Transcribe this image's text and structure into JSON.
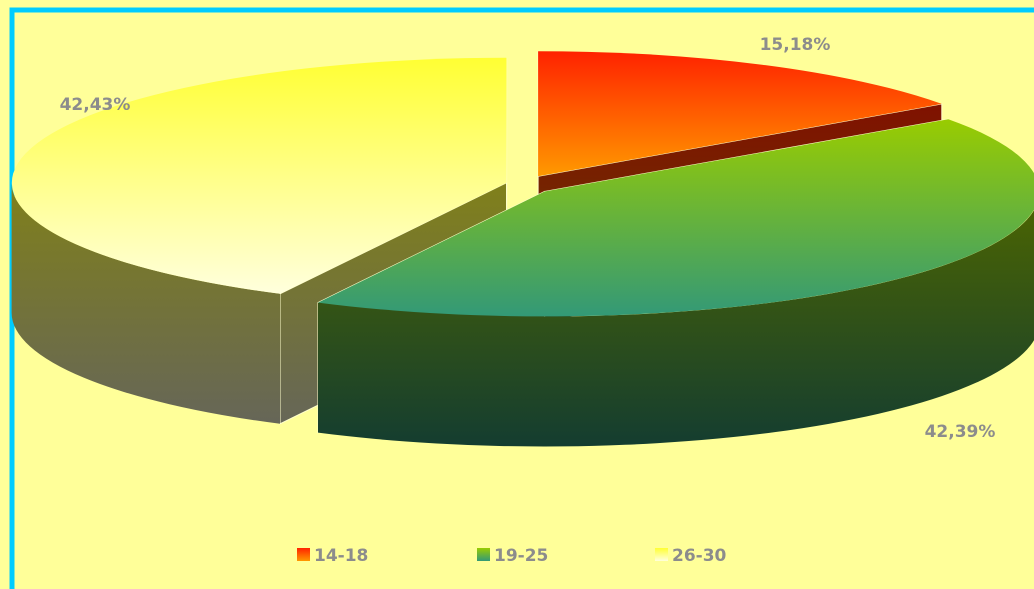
{
  "chart_data": {
    "type": "pie3d",
    "categories": [
      "14-18",
      "19-25",
      "26-30"
    ],
    "values": [
      15.18,
      42.39,
      42.43
    ],
    "value_labels": [
      "15,18%",
      "42,39%",
      "42,43%"
    ],
    "colors": [
      [
        "#ff2200",
        "#ff9900"
      ],
      [
        "#99cc00",
        "#339977"
      ],
      [
        "#ffff33",
        "#ffffdd"
      ]
    ]
  }
}
